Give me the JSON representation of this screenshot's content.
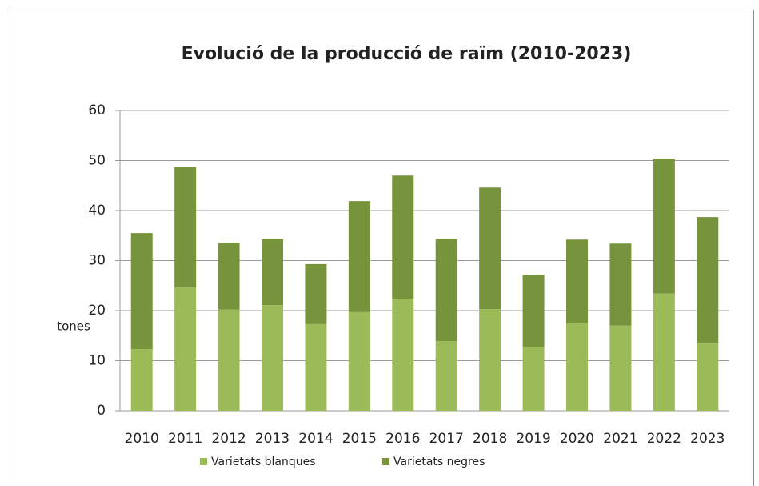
{
  "chart_data": {
    "type": "stacked_bar",
    "title": "Evolució de la producció de raïm  (2010-2023)",
    "ylabel": "tones",
    "categories": [
      "2010",
      "2011",
      "2012",
      "2013",
      "2014",
      "2015",
      "2016",
      "2017",
      "2018",
      "2019",
      "2020",
      "2021",
      "2022",
      "2023"
    ],
    "series": [
      {
        "name": "Varietats blanques",
        "color": "#9bbb59",
        "values": [
          12.3,
          24.6,
          20.2,
          21.1,
          17.3,
          19.7,
          22.4,
          13.9,
          20.3,
          12.8,
          17.4,
          17.0,
          23.4,
          13.4
        ]
      },
      {
        "name": "Varietats negres",
        "color": "#77933c",
        "values": [
          23.2,
          24.2,
          13.4,
          13.3,
          12.0,
          22.2,
          24.6,
          20.5,
          24.3,
          14.4,
          16.8,
          16.4,
          27.0,
          25.3
        ]
      }
    ],
    "ylim": [
      0,
      60
    ],
    "yticks": [
      0,
      10,
      20,
      30,
      40,
      50,
      60
    ],
    "grid": true,
    "legend": "bottom"
  }
}
